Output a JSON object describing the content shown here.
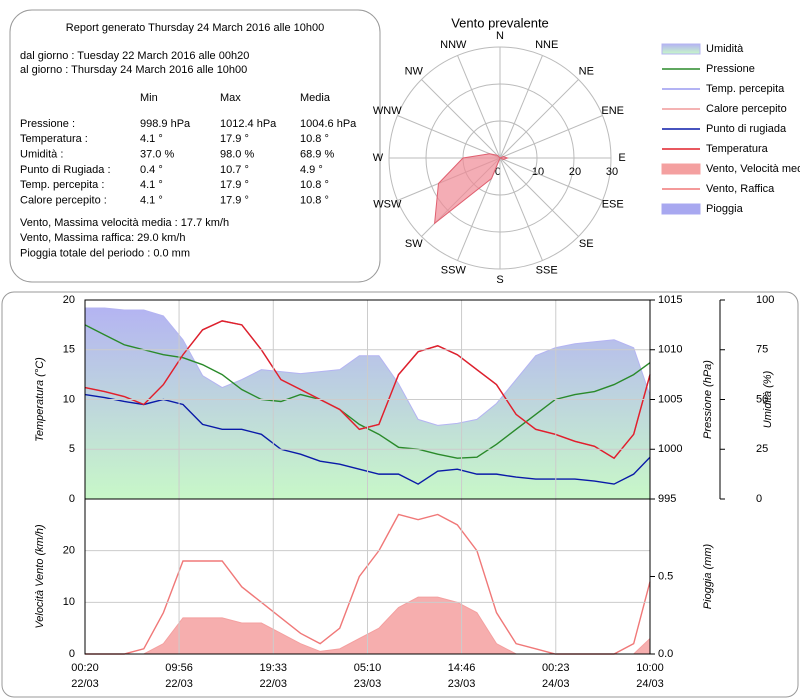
{
  "report": {
    "title": "Report generato Thursday 24 March 2016 alle 10h00",
    "from": "dal giorno : Tuesday 22 March 2016 alle 00h20",
    "to": "al giorno : Thursday 24 March 2016 alle 10h00",
    "columns": [
      "Min",
      "Max",
      "Media"
    ],
    "rows": [
      [
        "Pressione :",
        "998.9 hPa",
        "1012.4 hPa",
        "1004.6 hPa"
      ],
      [
        "Temperatura :",
        "4.1 °",
        "17.9 °",
        "10.8 °"
      ],
      [
        "Umidità :",
        "37.0 %",
        "98.0 %",
        "68.9 %"
      ],
      [
        "Punto di Rugiada :",
        "0.4 °",
        "10.7 °",
        "4.9 °"
      ],
      [
        "Temp. percepita :",
        "4.1 °",
        "17.9 °",
        "10.8 °"
      ],
      [
        "Calore percepito :",
        "4.1 °",
        "17.9 °",
        "10.8 °"
      ]
    ],
    "notes": [
      "Vento, Massima velocità media : 17.7 km/h",
      "Vento, Massima raffica: 29.0 km/h",
      "Pioggia totale del periodo : 0.0 mm"
    ]
  },
  "chart_data": [
    {
      "type": "polar",
      "title": "Vento prevalente",
      "categories": [
        "N",
        "NNE",
        "NE",
        "ENE",
        "E",
        "ESE",
        "SE",
        "SSE",
        "S",
        "SSW",
        "SW",
        "WSW",
        "W",
        "WNW",
        "NW",
        "NNW"
      ],
      "rlim": [
        0,
        30
      ],
      "rticks": [
        0,
        10,
        20,
        30
      ],
      "series": [
        {
          "color": "#f08a96",
          "values": [
            0,
            0,
            0,
            1,
            2,
            1,
            0,
            0,
            0,
            6,
            25,
            18,
            10,
            3,
            1,
            0
          ]
        }
      ]
    },
    {
      "type": "line",
      "x": [
        "2016-03-22T00:20",
        "2016-03-22T02:20",
        "2016-03-22T04:20",
        "2016-03-22T06:20",
        "2016-03-22T08:20",
        "2016-03-22T10:20",
        "2016-03-22T12:20",
        "2016-03-22T14:20",
        "2016-03-22T16:20",
        "2016-03-22T18:20",
        "2016-03-22T20:20",
        "2016-03-22T22:20",
        "2016-03-23T00:20",
        "2016-03-23T02:20",
        "2016-03-23T04:20",
        "2016-03-23T06:20",
        "2016-03-23T08:20",
        "2016-03-23T10:20",
        "2016-03-23T12:20",
        "2016-03-23T14:20",
        "2016-03-23T16:20",
        "2016-03-23T18:20",
        "2016-03-23T20:20",
        "2016-03-23T22:20",
        "2016-03-24T00:20",
        "2016-03-24T02:20",
        "2016-03-24T04:20",
        "2016-03-24T06:20",
        "2016-03-24T08:20",
        "2016-03-24T10:00"
      ],
      "xlim": [
        "2016-03-22T00:20",
        "2016-03-24T10:00"
      ],
      "xticks": [
        {
          "value": "2016-03-22T00:20",
          "label": "00:20",
          "date": "22/03"
        },
        {
          "value": "2016-03-22T09:56",
          "label": "09:56",
          "date": "22/03"
        },
        {
          "value": "2016-03-22T19:33",
          "label": "19:33",
          "date": "22/03"
        },
        {
          "value": "2016-03-23T05:10",
          "label": "05:10",
          "date": "23/03"
        },
        {
          "value": "2016-03-23T14:46",
          "label": "14:46",
          "date": "23/03"
        },
        {
          "value": "2016-03-24T00:23",
          "label": "00:23",
          "date": "24/03"
        },
        {
          "value": "2016-03-24T10:00",
          "label": "10:00",
          "date": "24/03"
        }
      ],
      "grid": true,
      "panels": [
        {
          "ylabel": "Temperatura (°C)",
          "ylim": [
            0,
            20
          ],
          "yticks": [
            0,
            5,
            10,
            15,
            20
          ],
          "y2label": "Pressione (hPa)",
          "y2lim": [
            995,
            1015
          ],
          "y2ticks": [
            995,
            1000,
            1005,
            1010,
            1015
          ],
          "y3label": "Umidità (%)",
          "y3lim": [
            0,
            100
          ],
          "y3ticks": [
            0,
            25,
            50,
            75,
            100
          ],
          "series": [
            {
              "name": "Umidità",
              "color": "#b4b4f2",
              "axis": "y3",
              "fill": true,
              "values": [
                96,
                96,
                95,
                95,
                92,
                80,
                62,
                56,
                60,
                65,
                64,
                63,
                64,
                65,
                72,
                72,
                58,
                40,
                37,
                38,
                40,
                48,
                60,
                72,
                76,
                78,
                79,
                80,
                76,
                52
              ]
            },
            {
              "name": "Pressione",
              "color": "#2a8a2a",
              "axis": "y2",
              "values": [
                1012.5,
                1011.5,
                1010.5,
                1010,
                1009.5,
                1009.2,
                1008.5,
                1007.5,
                1006,
                1005,
                1004.8,
                1005.5,
                1005,
                1004,
                1002.5,
                1001.5,
                1000.2,
                1000,
                999.5,
                999.1,
                999.2,
                1000.5,
                1002,
                1003.5,
                1005,
                1005.5,
                1005.8,
                1006.5,
                1007.5,
                1008.7
              ]
            },
            {
              "name": "Temp. percepita",
              "color": "#9a9af0",
              "axis": "y",
              "values": [
                11.2,
                10.8,
                10.3,
                9.5,
                11.5,
                14.5,
                17,
                17.9,
                17.5,
                15,
                12,
                11,
                10,
                9,
                7,
                7.5,
                12.5,
                14.8,
                15.4,
                14.5,
                13,
                11.5,
                8.5,
                7,
                6.5,
                5.8,
                5.3,
                4.1,
                6.5,
                12.5
              ]
            },
            {
              "name": "Calore percepito",
              "color": "#f09a9a",
              "axis": "y",
              "values": [
                11.2,
                10.8,
                10.3,
                9.5,
                11.5,
                14.5,
                17,
                17.9,
                17.5,
                15,
                12,
                11,
                10,
                9,
                7,
                7.5,
                12.5,
                14.8,
                15.4,
                14.5,
                13,
                11.5,
                8.5,
                7,
                6.5,
                5.8,
                5.3,
                4.1,
                6.5,
                12.5
              ]
            },
            {
              "name": "Punto di rugiada",
              "color": "#0a1aa8",
              "axis": "y",
              "values": [
                10.5,
                10.2,
                9.8,
                9.5,
                10,
                9.5,
                7.5,
                7,
                7,
                6.5,
                5,
                4.5,
                3.8,
                3.5,
                3,
                2.5,
                2.5,
                1.5,
                2.8,
                3,
                2.5,
                2.5,
                2.2,
                2,
                2,
                2,
                1.8,
                1.5,
                2.5,
                4.2
              ]
            },
            {
              "name": "Temperatura",
              "color": "#e0202a",
              "axis": "y",
              "values": [
                11.2,
                10.8,
                10.3,
                9.5,
                11.5,
                14.5,
                17,
                17.9,
                17.5,
                15,
                12,
                11,
                10,
                9,
                7,
                7.5,
                12.5,
                14.8,
                15.4,
                14.5,
                13,
                11.5,
                8.5,
                7,
                6.5,
                5.8,
                5.3,
                4.1,
                6.5,
                12.5
              ]
            }
          ]
        },
        {
          "ylabel": "Velocità Vento (km/h)",
          "ylim": [
            0,
            30
          ],
          "yticks": [
            0,
            10,
            20
          ],
          "y2label": "Pioggia (mm)",
          "y2lim": [
            0,
            1
          ],
          "y2ticks": [
            {
              "value": 0,
              "label": "0.0"
            },
            0.5
          ],
          "series": [
            {
              "name": "Vento, Velocità media",
              "color": "#f4a0a0",
              "axis": "y",
              "fill": true,
              "values": [
                0,
                0,
                0,
                0,
                2,
                7,
                7,
                7,
                6,
                6,
                4,
                2,
                0.5,
                1,
                3,
                5,
                9,
                11,
                11,
                10,
                8,
                2,
                0,
                0,
                0,
                0,
                0,
                0,
                0,
                3
              ]
            },
            {
              "name": "Vento, Raffica",
              "color": "#f07878",
              "axis": "y",
              "values": [
                0,
                0,
                0,
                1,
                8,
                18,
                18,
                18,
                13,
                10,
                7,
                4,
                2,
                5,
                15,
                20,
                27,
                26,
                27,
                25,
                20,
                8,
                2,
                1,
                0,
                0,
                0,
                0,
                2,
                14
              ]
            },
            {
              "name": "Pioggia",
              "color": "#a8a8f0",
              "axis": "y2",
              "fill": true,
              "values": [
                0,
                0,
                0,
                0,
                0,
                0,
                0,
                0,
                0,
                0,
                0,
                0,
                0,
                0,
                0,
                0,
                0,
                0,
                0,
                0,
                0,
                0,
                0,
                0,
                0,
                0,
                0,
                0,
                0,
                0
              ]
            }
          ]
        }
      ]
    }
  ]
}
